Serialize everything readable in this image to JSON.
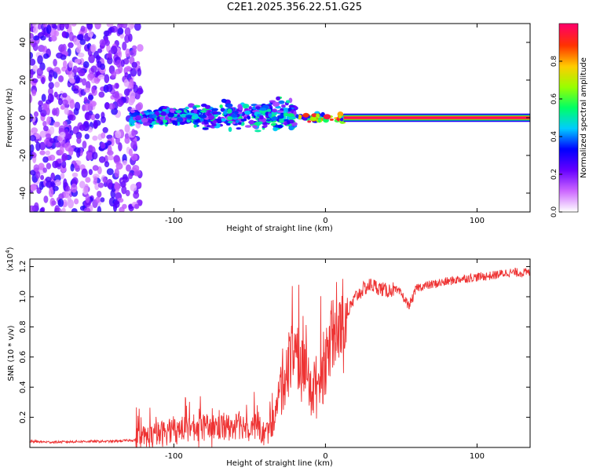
{
  "figure": {
    "title": "C2E1.2025.356.22.51.G25"
  },
  "chart_data": [
    {
      "type": "heatmap",
      "title": "C2E1.2025.356.22.51.G25",
      "xlabel": "Height of straight line (km)",
      "ylabel": "Frequency (Hz)",
      "xlim": [
        -195,
        135
      ],
      "ylim": [
        -50,
        50
      ],
      "xticks": [
        -100,
        0,
        100
      ],
      "xtick_labels": [
        "-100",
        "0",
        "100"
      ],
      "yticks": [
        -40,
        -20,
        0,
        20,
        40
      ],
      "ytick_labels": [
        "-40",
        "-20",
        "0",
        "20",
        "40"
      ],
      "colorbar": {
        "label": "Normalized spectral amplitude",
        "range": [
          0,
          1
        ],
        "ticks": [
          0.0,
          0.2,
          0.4,
          0.6,
          0.8
        ],
        "tick_labels": [
          "0.0",
          "0.2",
          "0.4",
          "0.6",
          "0.8"
        ],
        "colors": [
          "#ffffff",
          "#cc66ff",
          "#6600ff",
          "#0000ff",
          "#00ccff",
          "#00ff66",
          "#99ff00",
          "#ffcc00",
          "#ff3300",
          "#ff0066"
        ]
      },
      "regions": [
        {
          "name": "noise",
          "x_range": [
            -195,
            -122
          ],
          "freq_range": [
            -50,
            50
          ],
          "amplitude": 0.15
        },
        {
          "name": "onset",
          "x_range": [
            -128,
            -20
          ],
          "freq_range": [
            -8,
            8
          ],
          "amplitude": 0.35
        },
        {
          "name": "transition",
          "x_range": [
            -20,
            12
          ],
          "freq_range": [
            -3,
            3
          ],
          "amplitude": 0.6
        },
        {
          "name": "tracked carrier",
          "x_range": [
            12,
            135
          ],
          "freq_range": [
            -1,
            1
          ],
          "amplitude": 1.0
        }
      ]
    },
    {
      "type": "line",
      "xlabel": "Height of straight line (km)",
      "ylabel": "SNR (10 * v/v)",
      "y_multiplier": "(x10",
      "y_multiplier_exp": "4",
      "y_multiplier_close": ")",
      "xlim": [
        -195,
        135
      ],
      "ylim": [
        0,
        1.25
      ],
      "xticks": [
        -100,
        0,
        100
      ],
      "xtick_labels": [
        "-100",
        "0",
        "100"
      ],
      "yticks": [
        0.2,
        0.4,
        0.6,
        0.8,
        1.0,
        1.2
      ],
      "ytick_labels": [
        "0.2",
        "0.4",
        "0.6",
        "0.8",
        "1.0",
        "1.2"
      ],
      "series": [
        {
          "name": "SNR",
          "color": "#ee3333",
          "x": [
            -195,
            -180,
            -160,
            -140,
            -125,
            -115,
            -105,
            -100,
            -90,
            -80,
            -70,
            -60,
            -50,
            -45,
            -40,
            -35,
            -30,
            -28,
            -25,
            -22,
            -20,
            -15,
            -10,
            -5,
            0,
            5,
            10,
            15,
            20,
            25,
            30,
            35,
            40,
            45,
            50,
            53,
            55,
            58,
            60,
            70,
            80,
            90,
            100,
            110,
            120,
            135
          ],
          "values": [
            0.04,
            0.035,
            0.04,
            0.04,
            0.05,
            0.07,
            0.1,
            0.12,
            0.13,
            0.13,
            0.14,
            0.14,
            0.15,
            0.14,
            0.08,
            0.15,
            0.35,
            0.45,
            0.55,
            0.62,
            0.6,
            0.5,
            0.4,
            0.4,
            0.55,
            0.75,
            0.8,
            0.9,
            1.0,
            1.05,
            1.08,
            1.06,
            1.04,
            1.05,
            1.02,
            0.97,
            0.94,
            1.0,
            1.06,
            1.08,
            1.1,
            1.12,
            1.13,
            1.14,
            1.16,
            1.16
          ]
        }
      ]
    }
  ]
}
